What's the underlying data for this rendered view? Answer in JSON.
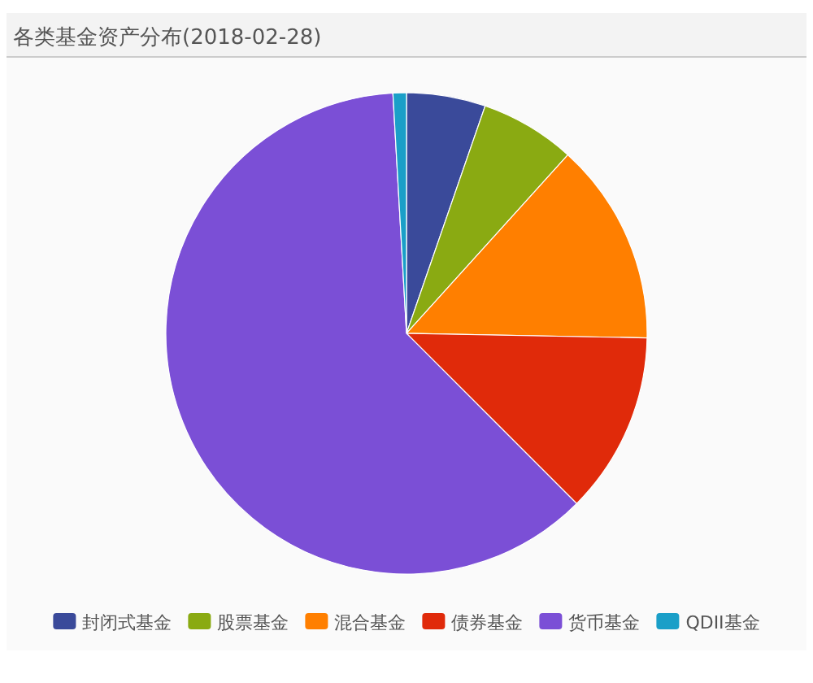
{
  "chart_data": {
    "type": "pie",
    "title": "各类基金资产分布(2018-02-28)",
    "categories": [
      "封闭式基金",
      "股票基金",
      "混合基金",
      "债券基金",
      "货币基金",
      "QDII基金"
    ],
    "values": [
      5.3,
      6.4,
      13.6,
      12.2,
      61.6,
      0.9
    ],
    "colors": [
      "#3a4a9a",
      "#8aaa12",
      "#ff7f00",
      "#e02a0a",
      "#7b4fd6",
      "#1a9fc8"
    ],
    "legend": "bottom"
  }
}
